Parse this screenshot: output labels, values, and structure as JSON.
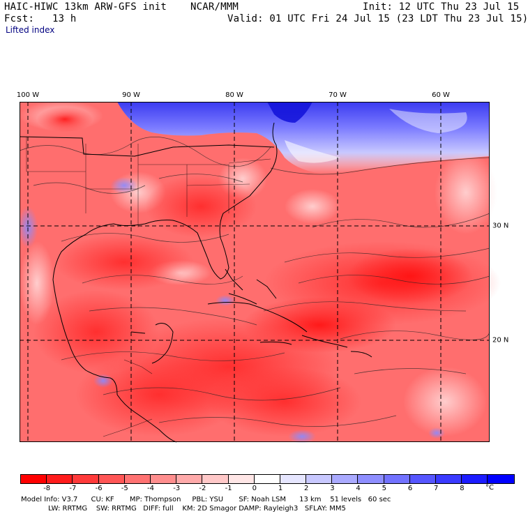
{
  "header": {
    "model": "HAIC-HIWC 13km ARW-GFS init",
    "org": "NCAR/MMM",
    "init": "Init: 12 UTC Thu 23 Jul 15",
    "fcst": "Fcst:   13 h",
    "valid": "Valid: 01 UTC Fri 24 Jul 15 (23 LDT Thu 23 Jul 15)",
    "field": "Lifted index"
  },
  "axes": {
    "lon_labels": [
      "100 W",
      "90 W",
      "80 W",
      "70 W",
      "60 W"
    ],
    "lat_labels": [
      "30 N",
      "20 N"
    ]
  },
  "colorbar": {
    "ticks": [
      "-8",
      "-7",
      "-6",
      "-5",
      "-4",
      "-3",
      "-2",
      "-1",
      "0",
      "1",
      "2",
      "3",
      "4",
      "5",
      "6",
      "7",
      "8"
    ],
    "unit": "°C",
    "colors": [
      "#ff0000",
      "#ff1c1c",
      "#ff3a3a",
      "#ff5656",
      "#ff7272",
      "#ff8e8e",
      "#ffaaaa",
      "#ffc8c8",
      "#ffe6e6",
      "#ffffff",
      "#e6e6ff",
      "#c8c8ff",
      "#aaaaff",
      "#8e8eff",
      "#7272ff",
      "#5656ff",
      "#3a3aff",
      "#1c1cff",
      "#0000ff"
    ]
  },
  "footer": {
    "line1": "Model Info: V3.7      CU: KF       MP: Thompson     PBL: YSU       SF: Noah LSM      13 km    51 levels   60 sec",
    "line2": "LW: RRTMG    SW: RRTMG   DIFF: full    KM: 2D Smagor DAMP: Rayleigh3   SFLAY: MM5"
  }
}
